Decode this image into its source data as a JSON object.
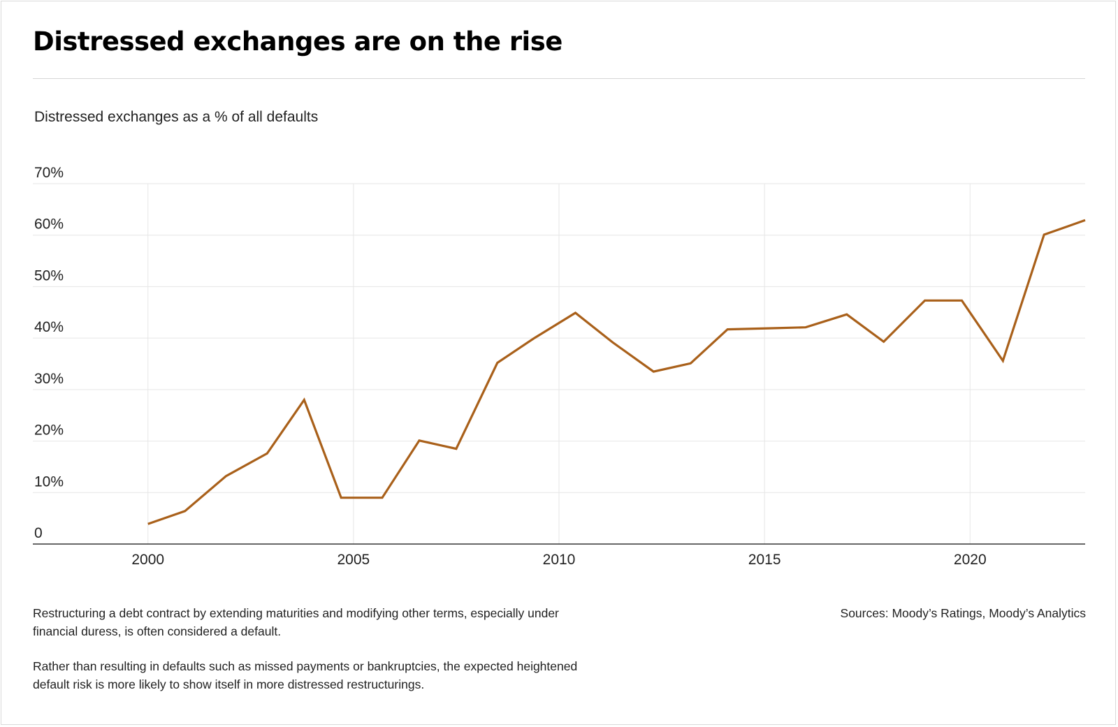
{
  "title": "Distressed exchanges are on the rise",
  "subtitle": "Distressed exchanges as a % of all defaults",
  "notes": [
    "Restructuring a debt contract by extending maturities and modifying other terms, especially under financial duress, is often considered a default.",
    "Rather than resulting in defaults such as missed payments or bankruptcies, the expected heightened default risk is more likely to show itself in more distressed restructurings."
  ],
  "source": "Sources: Moody’s Ratings, Moody’s Analytics",
  "colors": {
    "line": "#A9601A",
    "grid": "#e6e6e6",
    "axis": "#333333"
  },
  "chart_data": {
    "type": "line",
    "title": "Distressed exchanges are on the rise",
    "ylabel": "Distressed exchanges as a % of all defaults",
    "xlim": [
      1997.2,
      2022.8
    ],
    "ylim": [
      0,
      70
    ],
    "xticks": [
      2000,
      2005,
      2010,
      2015,
      2020
    ],
    "xtick_labels": [
      "2000",
      "2005",
      "2010",
      "2015",
      "2020"
    ],
    "yticks": [
      0,
      10,
      20,
      30,
      40,
      50,
      60,
      70
    ],
    "ytick_labels": [
      "0",
      "10%",
      "20%",
      "30%",
      "40%",
      "50%",
      "60%",
      "70%"
    ],
    "grid": true,
    "series": [
      {
        "x": [
          2000,
          2000.9,
          2001.9,
          2002.9,
          2003.8,
          2004.7,
          2005.7,
          2006.6,
          2007.5,
          2008.5,
          2009.4,
          2010.4,
          2011.3,
          2012.3,
          2013.2,
          2014.1,
          2015.1,
          2016.0,
          2017.0,
          2017.9,
          2018.9,
          2019.8,
          2020.8,
          2021.8,
          2022.8
        ],
        "values": [
          3.9,
          6.4,
          13.2,
          17.6,
          28.0,
          9.0,
          9.0,
          20.1,
          18.5,
          35.2,
          40.0,
          44.9,
          39.2,
          33.5,
          35.1,
          41.7,
          41.9,
          42.1,
          44.6,
          39.3,
          47.3,
          47.3,
          35.6,
          60.1,
          62.9
        ]
      }
    ]
  }
}
